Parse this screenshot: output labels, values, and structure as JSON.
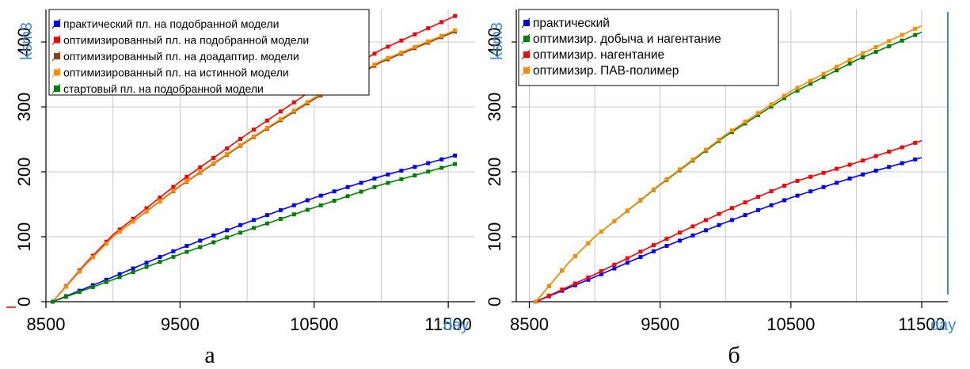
{
  "chart_data": [
    {
      "type": "line",
      "caption": "а",
      "xlabel": "day",
      "ylabel": "ksm3",
      "xlim": [
        8500,
        11700
      ],
      "ylim": [
        0,
        450
      ],
      "x_ticks": [
        "8500",
        "9500",
        "10500",
        "11500"
      ],
      "x_tick_values": [
        8500,
        9500,
        10500,
        11500
      ],
      "y_ticks": [
        "0",
        "100",
        "200",
        "300",
        "400"
      ],
      "y_tick_values": [
        0,
        100,
        200,
        300,
        400
      ],
      "grid": true,
      "legend_position": "top",
      "series": [
        {
          "name": "практический пл. на подобранной модели",
          "color": "#0000ff",
          "x": [
            8550,
            9000,
            9500,
            10000,
            10500,
            11000,
            11550
          ],
          "y": [
            0,
            38,
            82,
            122,
            160,
            193,
            225
          ]
        },
        {
          "name": "оптимизированный пл. на подобранной модели",
          "color": "#ff0000",
          "x": [
            8550,
            8800,
            9000,
            9500,
            10000,
            10500,
            11000,
            11550
          ],
          "y": [
            0,
            60,
            103,
            185,
            258,
            328,
            388,
            440
          ]
        },
        {
          "name": "оптимизированный пл. на доадаптир. модели",
          "color": "#8b4513",
          "x": [
            8550,
            8800,
            9000,
            9500,
            10000,
            10500,
            11000,
            11550
          ],
          "y": [
            0,
            58,
            100,
            178,
            247,
            312,
            369,
            416
          ]
        },
        {
          "name": "оптимизированный пл. на истинной модели",
          "color": "#ff8c00",
          "x": [
            8550,
            8800,
            9000,
            9500,
            10000,
            10500,
            11000,
            11550
          ],
          "y": [
            0,
            58,
            100,
            179,
            248,
            314,
            371,
            418
          ]
        },
        {
          "name": "стартовый пл. на подобранной модели",
          "color": "#008000",
          "x": [
            8550,
            9000,
            9500,
            10000,
            10500,
            11000,
            11550
          ],
          "y": [
            0,
            34,
            73,
            110,
            145,
            180,
            212
          ]
        }
      ]
    },
    {
      "type": "line",
      "caption": "б",
      "xlabel": "day",
      "ylabel": "ksm3",
      "xlim": [
        8400,
        11700
      ],
      "ylim": [
        0,
        450
      ],
      "x_ticks": [
        "8500",
        "9500",
        "10500",
        "11500"
      ],
      "x_tick_values": [
        8500,
        9500,
        10500,
        11500
      ],
      "y_ticks": [
        "0",
        "100",
        "200",
        "300",
        "400"
      ],
      "y_tick_values": [
        0,
        100,
        200,
        300,
        400
      ],
      "grid": true,
      "legend_position": "top-left",
      "series": [
        {
          "name": "практический",
          "color": "#0000ff",
          "x": [
            8550,
            9000,
            9500,
            10000,
            10500,
            11000,
            11500
          ],
          "y": [
            0,
            38,
            82,
            122,
            160,
            193,
            222
          ]
        },
        {
          "name": "оптимизир. добыча и нагентание",
          "color": "#008000",
          "x": [
            8550,
            8800,
            9000,
            9500,
            10000,
            10500,
            11000,
            11500
          ],
          "y": [
            0,
            60,
            100,
            180,
            255,
            320,
            372,
            415
          ]
        },
        {
          "name": "оптимизир. нагентание",
          "color": "#ff0000",
          "x": [
            8550,
            9000,
            9500,
            10000,
            10500,
            11000,
            11500
          ],
          "y": [
            0,
            42,
            92,
            140,
            183,
            214,
            248
          ]
        },
        {
          "name": "оптимизир. ПАВ-полимер",
          "color": "#ff8c00",
          "x": [
            8550,
            8800,
            9000,
            9500,
            10000,
            10500,
            11000,
            11500
          ],
          "y": [
            0,
            60,
            100,
            181,
            257,
            324,
            378,
            425
          ]
        }
      ]
    }
  ]
}
